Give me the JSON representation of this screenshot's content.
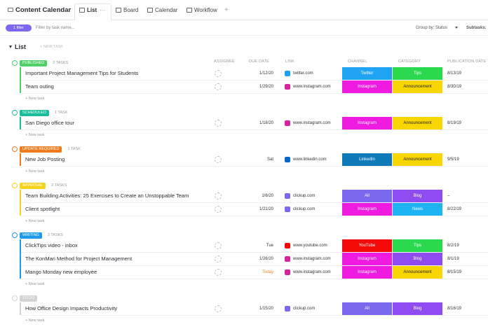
{
  "header": {
    "title": "Content Calendar",
    "tabs": [
      "List",
      "Board",
      "Calendar",
      "Workflow"
    ],
    "list_tab_more": "···",
    "add_view": "+"
  },
  "toolbar": {
    "filter": "1 filter",
    "search_placeholder": "Filter by task name...",
    "group_by": "Group by: Status",
    "subtasks": "Subtasks:"
  },
  "list": {
    "title": "List",
    "new_task": "+ NEW TASK",
    "new_task_row": "+ New task",
    "columns": [
      "ASSIGNEE",
      "DUE DATE",
      "LINK",
      "CHANNEL",
      "CATEGORY",
      "PUBLICATION DATE"
    ]
  },
  "groups": [
    {
      "status": "PUBLISHED",
      "count": "2 TASKS",
      "color": "#4fd16a",
      "tasks": [
        {
          "name": "Important Project Management Tips for Students",
          "due": "1/12/20",
          "link": "twitter.com",
          "link_color": "#1da1f2",
          "channel": "Twitter",
          "channel_color": "#1fa3f2",
          "category": "Tips",
          "category_color": "#2bd94f",
          "pub": "8/13/19"
        },
        {
          "name": "Team outing",
          "due": "1/29/20",
          "link": "www.instagram.com",
          "link_color": "#d6249f",
          "channel": "Instagram",
          "channel_color": "#f01be0",
          "category": "Announcement",
          "category_color": "#f9d600",
          "pub": "8/30/19"
        }
      ]
    },
    {
      "status": "SCHEDULED",
      "count": "1 TASK",
      "color": "#1bbc9c",
      "tasks": [
        {
          "name": "San Diego office tour",
          "due": "1/18/20",
          "link": "www.instagram.com",
          "link_color": "#d6249f",
          "channel": "Instagram",
          "channel_color": "#f01be0",
          "category": "Announcement",
          "category_color": "#f9d600",
          "pub": "8/19/19"
        }
      ]
    },
    {
      "status": "UPDATE REQUIRED",
      "count": "1 TASK",
      "color": "#f07b1d",
      "tasks": [
        {
          "name": "New Job Posting",
          "due": "Sat",
          "link": "www.linkedin.com",
          "link_color": "#0a66c2",
          "channel": "LinkedIn",
          "channel_color": "#0e7ab8",
          "category": "Announcement",
          "category_color": "#f9d600",
          "pub": "9/5/19"
        }
      ]
    },
    {
      "status": "APPROVAL",
      "count": "2 TASKS",
      "color": "#f5d31c",
      "tasks": [
        {
          "name": "Team Building Activities: 25 Exercises to Create an Unstoppable Team",
          "due": "1/6/20",
          "link": "clickup.com",
          "link_color": "#7b68ee",
          "channel": "All",
          "channel_color": "#7b68ee",
          "category": "Blog",
          "category_color": "#8f4cf0",
          "pub": "–"
        },
        {
          "name": "Client spotlight",
          "due": "1/21/20",
          "link": "clickup.com",
          "link_color": "#7b68ee",
          "channel": "Instagram",
          "channel_color": "#f01be0",
          "category": "News",
          "category_color": "#1eb3f2",
          "pub": "8/22/19"
        }
      ]
    },
    {
      "status": "WRITING",
      "count": "3 TASKS",
      "color": "#1e9bf0",
      "tasks": [
        {
          "name": "ClickTips video - inbox",
          "due": "Tue",
          "link": "www.youtube.com",
          "link_color": "#ff0000",
          "channel": "YouTube",
          "channel_color": "#f50a0a",
          "category": "Tips",
          "category_color": "#2bd94f",
          "pub": "8/2/19"
        },
        {
          "name": "The KonMari Method for Project Management",
          "due": "1/26/20",
          "link": "www.instagram.com",
          "link_color": "#d6249f",
          "channel": "Instagram",
          "channel_color": "#f01be0",
          "category": "Blog",
          "category_color": "#8f4cf0",
          "pub": "8/1/19"
        },
        {
          "name": "Mango Monday new employee",
          "due": "Today",
          "due_color": "#f0861d",
          "link": "www.instagram.com",
          "link_color": "#d6249f",
          "channel": "Instagram",
          "channel_color": "#f01be0",
          "category": "Announcement",
          "category_color": "#f9d600",
          "pub": "8/15/19"
        }
      ]
    },
    {
      "status": "TO DO",
      "color": "#d3d3d3",
      "tasks": [
        {
          "name": "How Office Design Impacts Productivity",
          "due": "1/15/20",
          "link": "clickup.com",
          "link_color": "#7b68ee",
          "channel": "All",
          "channel_color": "#7b68ee",
          "category": "Blog",
          "category_color": "#8f4cf0",
          "pub": "8/16/19"
        }
      ]
    }
  ]
}
